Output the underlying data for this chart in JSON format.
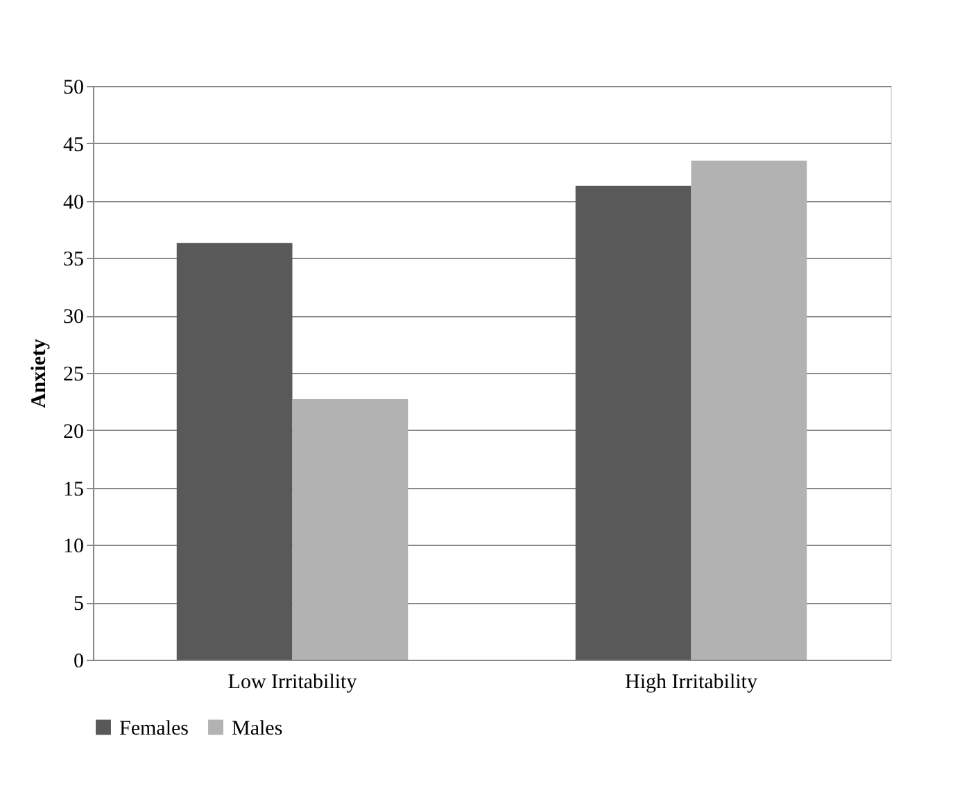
{
  "chart_data": {
    "type": "bar",
    "ylabel": "Anxiety",
    "categories": [
      "Low Irritability",
      "High Irritability"
    ],
    "series": [
      {
        "name": "Females",
        "color": "#595959",
        "values": [
          36.3,
          41.3
        ]
      },
      {
        "name": "Males",
        "color": "#b2b2b2",
        "values": [
          22.7,
          43.5
        ]
      }
    ],
    "ylim": [
      0,
      50
    ],
    "yticks": [
      0,
      5,
      10,
      15,
      20,
      25,
      30,
      35,
      40,
      45,
      50
    ],
    "grid": "y",
    "legend": "bottom"
  }
}
